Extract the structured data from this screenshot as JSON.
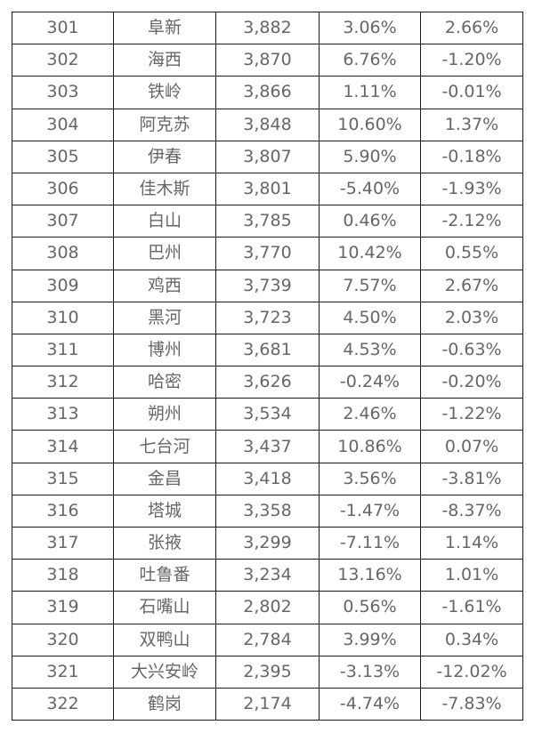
{
  "colors": {
    "positive": "#d0102e",
    "negative": "#4e8a1e",
    "text": "#666666",
    "city_text": "#333333",
    "border": "#1a1a1a"
  },
  "table": {
    "rows": [
      {
        "rank": "301",
        "city": "阜新",
        "value": "3,882",
        "change1": "3.06%",
        "change2": "2.66%"
      },
      {
        "rank": "302",
        "city": "海西",
        "value": "3,870",
        "change1": "6.76%",
        "change2": "-1.20%"
      },
      {
        "rank": "303",
        "city": "铁岭",
        "value": "3,866",
        "change1": "1.11%",
        "change2": "-0.01%"
      },
      {
        "rank": "304",
        "city": "阿克苏",
        "value": "3,848",
        "change1": "10.60%",
        "change2": "1.37%"
      },
      {
        "rank": "305",
        "city": "伊春",
        "value": "3,807",
        "change1": "5.90%",
        "change2": "-0.18%"
      },
      {
        "rank": "306",
        "city": "佳木斯",
        "value": "3,801",
        "change1": "-5.40%",
        "change2": "-1.93%"
      },
      {
        "rank": "307",
        "city": "白山",
        "value": "3,785",
        "change1": "0.46%",
        "change2": "-2.12%"
      },
      {
        "rank": "308",
        "city": "巴州",
        "value": "3,770",
        "change1": "10.42%",
        "change2": "0.55%"
      },
      {
        "rank": "309",
        "city": "鸡西",
        "value": "3,739",
        "change1": "7.57%",
        "change2": "2.67%"
      },
      {
        "rank": "310",
        "city": "黑河",
        "value": "3,723",
        "change1": "4.50%",
        "change2": "2.03%"
      },
      {
        "rank": "311",
        "city": "博州",
        "value": "3,681",
        "change1": "4.53%",
        "change2": "-0.63%"
      },
      {
        "rank": "312",
        "city": "哈密",
        "value": "3,626",
        "change1": "-0.24%",
        "change2": "-0.20%"
      },
      {
        "rank": "313",
        "city": "朔州",
        "value": "3,534",
        "change1": "2.46%",
        "change2": "-1.22%"
      },
      {
        "rank": "314",
        "city": "七台河",
        "value": "3,437",
        "change1": "10.86%",
        "change2": "0.07%"
      },
      {
        "rank": "315",
        "city": "金昌",
        "value": "3,418",
        "change1": "3.56%",
        "change2": "-3.81%"
      },
      {
        "rank": "316",
        "city": "塔城",
        "value": "3,358",
        "change1": "-1.47%",
        "change2": "-8.37%"
      },
      {
        "rank": "317",
        "city": "张掖",
        "value": "3,299",
        "change1": "-7.11%",
        "change2": "1.14%"
      },
      {
        "rank": "318",
        "city": "吐鲁番",
        "value": "3,234",
        "change1": "13.16%",
        "change2": "1.01%"
      },
      {
        "rank": "319",
        "city": "石嘴山",
        "value": "2,802",
        "change1": "0.56%",
        "change2": "-1.61%"
      },
      {
        "rank": "320",
        "city": "双鸭山",
        "value": "2,784",
        "change1": "3.99%",
        "change2": "0.34%"
      },
      {
        "rank": "321",
        "city": "大兴安岭",
        "value": "2,395",
        "change1": "-3.13%",
        "change2": "-12.02%"
      },
      {
        "rank": "322",
        "city": "鹤岗",
        "value": "2,174",
        "change1": "-4.74%",
        "change2": "-7.83%"
      }
    ]
  }
}
